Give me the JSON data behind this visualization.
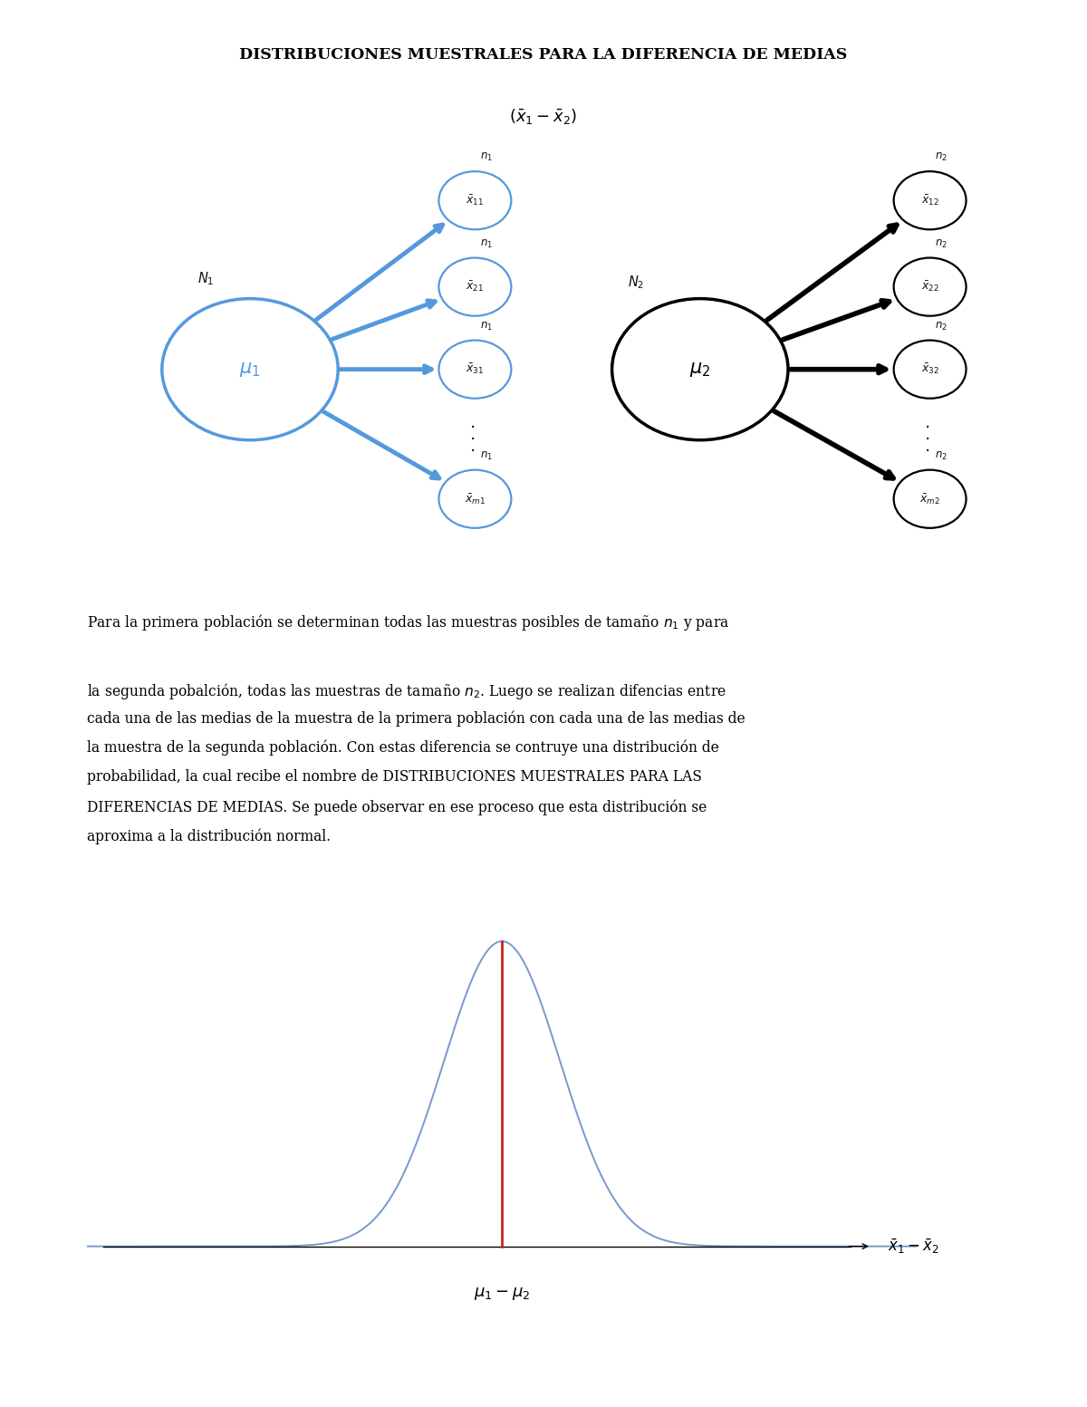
{
  "title_line1": "DISTRIBUCIONES MUESTRALES PARA LA DIFERENCIA DE MEDIAS",
  "title_line2": "$(\\bar{x}_1 - \\bar{x}_2)$",
  "bg_color": "#ffffff",
  "left_circle_color": "#5599dd",
  "right_circle_color": "#000000",
  "left_mu": "$\\mu_1$",
  "right_mu": "$\\mu_2$",
  "left_N": "$N_1$",
  "right_N": "$N_2$",
  "left_samples": [
    "$\\bar{x}_{11}$",
    "$\\bar{x}_{21}$",
    "$\\bar{x}_{31}$",
    "$\\bar{x}_{m1}$"
  ],
  "right_samples": [
    "$\\bar{x}_{12}$",
    "$\\bar{x}_{22}$",
    "$\\bar{x}_{32}$",
    "$\\bar{x}_{m2}$"
  ],
  "left_n_labels": [
    "$n_1$",
    "$n_1$",
    "$n_1$",
    "$n_1$"
  ],
  "right_n_labels": [
    "$n_2$",
    "$n_2$",
    "$n_2$",
    "$n_2$"
  ],
  "curve_color": "#7799cc",
  "axis_label_right": "$\\bar{x}_1 - \\bar{x}_2$",
  "axis_label_bottom": "$\\mu_1 - \\mu_2$",
  "red_line_color": "#cc2222",
  "fig_width": 12.0,
  "fig_height": 15.53
}
